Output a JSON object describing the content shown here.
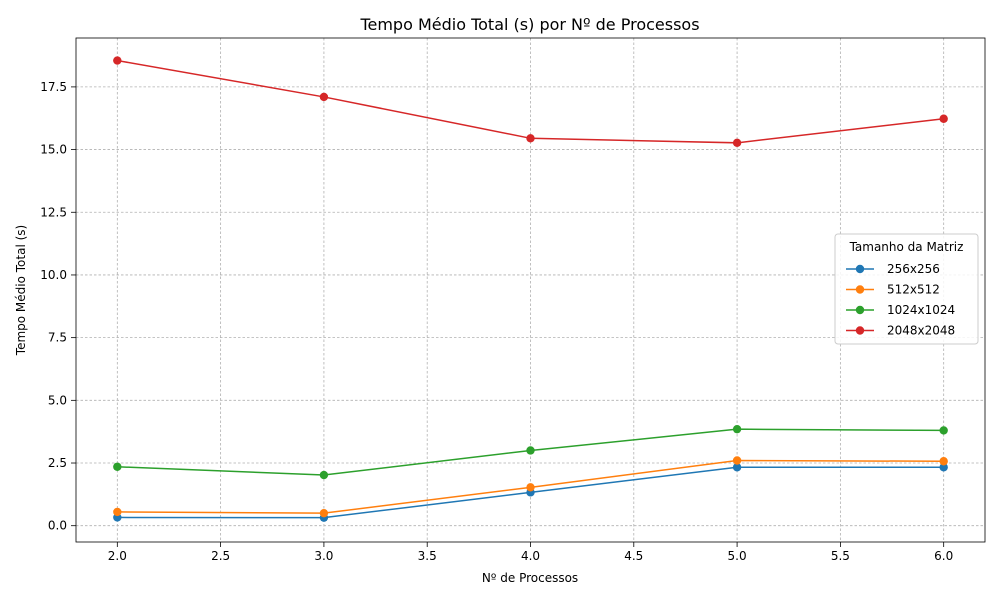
{
  "chart_data": {
    "type": "line",
    "title": "Tempo Médio Total (s) por Nº de Processos",
    "xlabel": "Nº de Processos",
    "ylabel": "Tempo Médio Total (s)",
    "x": [
      2.0,
      3.0,
      4.0,
      5.0,
      6.0
    ],
    "xlim": [
      1.8,
      6.2
    ],
    "ylim": [
      -0.65,
      19.45
    ],
    "x_ticks": [
      "2.0",
      "2.5",
      "3.0",
      "3.5",
      "4.0",
      "4.5",
      "5.0",
      "5.5",
      "6.0"
    ],
    "y_ticks": [
      "0.0",
      "2.5",
      "5.0",
      "7.5",
      "10.0",
      "12.5",
      "15.0",
      "17.5"
    ],
    "grid": true,
    "legend": {
      "title": "Tamanho da Matriz",
      "position": "center-right"
    },
    "series": [
      {
        "name": "256x256",
        "values": [
          0.33,
          0.32,
          1.33,
          2.33,
          2.33
        ],
        "color": "#1f77b4"
      },
      {
        "name": "512x512",
        "values": [
          0.55,
          0.5,
          1.53,
          2.6,
          2.57
        ],
        "color": "#ff7f0e"
      },
      {
        "name": "1024x1024",
        "values": [
          2.35,
          2.02,
          3.0,
          3.85,
          3.8
        ],
        "color": "#2ca02c"
      },
      {
        "name": "2048x2048",
        "values": [
          18.55,
          17.1,
          15.45,
          15.27,
          16.23
        ],
        "color": "#d62728"
      }
    ]
  }
}
